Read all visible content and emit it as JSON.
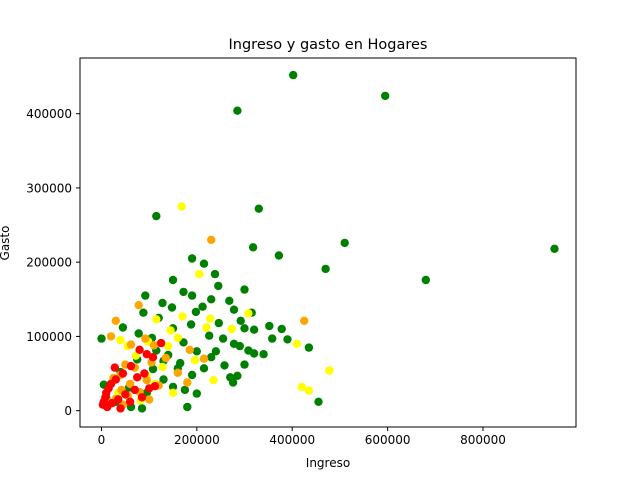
{
  "chart_data": {
    "type": "scatter",
    "title": "Ingreso y gasto en Hogares",
    "xlabel": "Ingreso",
    "ylabel": "Gasto",
    "xlim": [
      -45000,
      995000
    ],
    "ylim": [
      -22000,
      475000
    ],
    "xticks": [
      0,
      200000,
      400000,
      600000,
      800000
    ],
    "yticks": [
      0,
      100000,
      200000,
      300000,
      400000
    ],
    "xtick_labels": [
      "0",
      "200000",
      "400000",
      "600000",
      "800000"
    ],
    "ytick_labels": [
      "0",
      "100000",
      "200000",
      "300000",
      "400000"
    ],
    "grid": false,
    "series": [
      {
        "color": "#008000",
        "points": [
          [
            402000,
            452000
          ],
          [
            595000,
            424000
          ],
          [
            285000,
            404000
          ],
          [
            330000,
            272000
          ],
          [
            115000,
            262000
          ],
          [
            950000,
            218000
          ],
          [
            510000,
            226000
          ],
          [
            318000,
            220000
          ],
          [
            372000,
            209000
          ],
          [
            470000,
            191000
          ],
          [
            680000,
            176000
          ],
          [
            190000,
            205000
          ],
          [
            215000,
            198000
          ],
          [
            238000,
            184000
          ],
          [
            150000,
            176000
          ],
          [
            245000,
            168000
          ],
          [
            172000,
            160000
          ],
          [
            300000,
            163000
          ],
          [
            190000,
            155000
          ],
          [
            92000,
            155000
          ],
          [
            128000,
            145000
          ],
          [
            230000,
            150000
          ],
          [
            268000,
            148000
          ],
          [
            212000,
            140000
          ],
          [
            278000,
            136000
          ],
          [
            315000,
            132000
          ],
          [
            292000,
            121000
          ],
          [
            88000,
            132000
          ],
          [
            148000,
            139000
          ],
          [
            198000,
            133000
          ],
          [
            120000,
            125000
          ],
          [
            246000,
            118000
          ],
          [
            300000,
            111000
          ],
          [
            352000,
            114000
          ],
          [
            378000,
            110000
          ],
          [
            320000,
            109000
          ],
          [
            188000,
            116000
          ],
          [
            226000,
            101000
          ],
          [
            255000,
            97000
          ],
          [
            290000,
            87000
          ],
          [
            340000,
            76000
          ],
          [
            358000,
            97000
          ],
          [
            390000,
            96000
          ],
          [
            435000,
            85000
          ],
          [
            308000,
            81000
          ],
          [
            320000,
            77000
          ],
          [
            300000,
            62000
          ],
          [
            278000,
            90000
          ],
          [
            0,
            97000
          ],
          [
            45000,
            112000
          ],
          [
            78000,
            104000
          ],
          [
            106000,
            98000
          ],
          [
            150000,
            111000
          ],
          [
            172000,
            92000
          ],
          [
            200000,
            80000
          ],
          [
            230000,
            72000
          ],
          [
            258000,
            61000
          ],
          [
            285000,
            47000
          ],
          [
            270000,
            45000
          ],
          [
            276000,
            38000
          ],
          [
            215000,
            57000
          ],
          [
            190000,
            48000
          ],
          [
            160000,
            57000
          ],
          [
            130000,
            67000
          ],
          [
            108000,
            56000
          ],
          [
            130000,
            42000
          ],
          [
            150000,
            32000
          ],
          [
            175000,
            28000
          ],
          [
            200000,
            23000
          ],
          [
            180000,
            5000
          ],
          [
            455000,
            12000
          ],
          [
            95000,
            24000
          ],
          [
            58000,
            31000
          ],
          [
            75000,
            69000
          ],
          [
            40000,
            52000
          ],
          [
            30000,
            12000
          ],
          [
            10000,
            18000
          ],
          [
            62000,
            5000
          ],
          [
            85000,
            3000
          ],
          [
            5000,
            35000
          ],
          [
            115000,
            81000
          ],
          [
            140000,
            75000
          ],
          [
            165000,
            64000
          ],
          [
            240000,
            80000
          ]
        ]
      },
      {
        "color": "#ffff00",
        "points": [
          [
            168000,
            275000
          ],
          [
            205000,
            184000
          ],
          [
            228000,
            124000
          ],
          [
            170000,
            127000
          ],
          [
            308000,
            131000
          ],
          [
            115000,
            123000
          ],
          [
            273000,
            110000
          ],
          [
            410000,
            90000
          ],
          [
            420000,
            32000
          ],
          [
            435000,
            27000
          ],
          [
            478000,
            54000
          ],
          [
            235000,
            41000
          ],
          [
            180000,
            38000
          ],
          [
            160000,
            98000
          ],
          [
            140000,
            87000
          ],
          [
            98000,
            93000
          ],
          [
            128000,
            59000
          ],
          [
            95000,
            47000
          ],
          [
            150000,
            24000
          ],
          [
            72000,
            74000
          ],
          [
            55000,
            87000
          ],
          [
            40000,
            95000
          ],
          [
            220000,
            112000
          ],
          [
            196000,
            68000
          ],
          [
            145000,
            108000
          ],
          [
            112000,
            36000
          ],
          [
            82000,
            14000
          ],
          [
            35000,
            24000
          ]
        ]
      },
      {
        "color": "#ffa500",
        "points": [
          [
            230000,
            230000
          ],
          [
            425000,
            121000
          ],
          [
            78000,
            142000
          ],
          [
            30000,
            121000
          ],
          [
            20000,
            100000
          ],
          [
            92000,
            97000
          ],
          [
            62000,
            89000
          ],
          [
            110000,
            88000
          ],
          [
            215000,
            70000
          ],
          [
            185000,
            82000
          ],
          [
            70000,
            58000
          ],
          [
            50000,
            62000
          ],
          [
            40000,
            48000
          ],
          [
            25000,
            44000
          ],
          [
            60000,
            36000
          ],
          [
            95000,
            41000
          ],
          [
            120000,
            34000
          ],
          [
            160000,
            51000
          ],
          [
            180000,
            38000
          ],
          [
            42000,
            28000
          ],
          [
            55000,
            20000
          ],
          [
            30000,
            16000
          ],
          [
            15000,
            12000
          ],
          [
            80000,
            25000
          ],
          [
            100000,
            15000
          ],
          [
            45000,
            8000
          ],
          [
            135000,
            71000
          ],
          [
            105000,
            65000
          ]
        ]
      },
      {
        "color": "#ff0000",
        "points": [
          [
            125000,
            91000
          ],
          [
            95000,
            76000
          ],
          [
            108000,
            72000
          ],
          [
            80000,
            82000
          ],
          [
            62000,
            60000
          ],
          [
            45000,
            50000
          ],
          [
            30000,
            42000
          ],
          [
            20000,
            36000
          ],
          [
            15000,
            30000
          ],
          [
            10000,
            24000
          ],
          [
            8000,
            18000
          ],
          [
            5000,
            12000
          ],
          [
            3000,
            8000
          ],
          [
            12000,
            5000
          ],
          [
            22000,
            10000
          ],
          [
            35000,
            15000
          ],
          [
            50000,
            22000
          ],
          [
            70000,
            28000
          ],
          [
            85000,
            18000
          ],
          [
            100000,
            30000
          ],
          [
            112000,
            33000
          ],
          [
            60000,
            12000
          ],
          [
            40000,
            3000
          ],
          [
            28000,
            58000
          ],
          [
            90000,
            50000
          ],
          [
            75000,
            45000
          ]
        ]
      }
    ]
  }
}
